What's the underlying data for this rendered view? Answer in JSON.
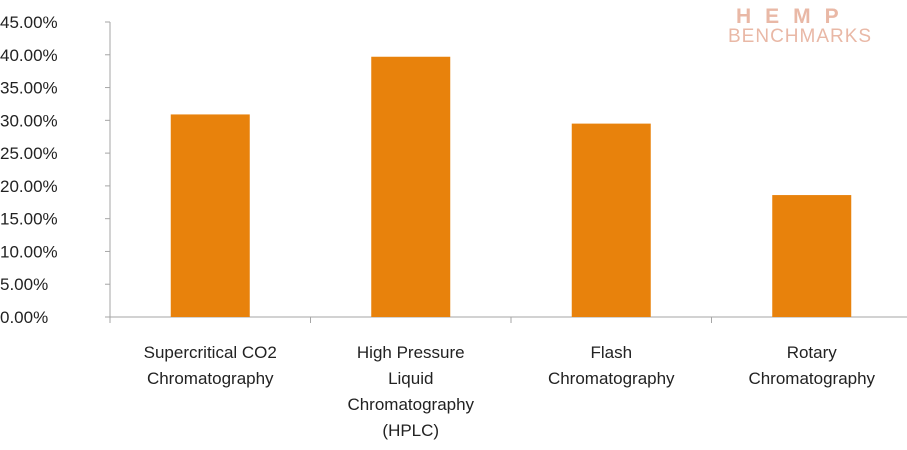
{
  "watermark": {
    "line1": "HEMP",
    "line2": "BENCHMARKS"
  },
  "chart_data": {
    "type": "bar",
    "title": "",
    "xlabel": "",
    "ylabel": "",
    "categories": [
      [
        "Supercritical CO2",
        "Chromatography"
      ],
      [
        "High Pressure",
        "Liquid",
        "Chromatography",
        "(HPLC)"
      ],
      [
        "Flash",
        "Chromatography"
      ],
      [
        "Rotary",
        "Chromatography"
      ]
    ],
    "values": [
      0.309,
      0.397,
      0.295,
      0.186
    ],
    "ylim": [
      0,
      0.45
    ],
    "yticks": [
      "0.00%",
      "5.00%",
      "10.00%",
      "15.00%",
      "20.00%",
      "25.00%",
      "30.00%",
      "35.00%",
      "40.00%",
      "45.00%"
    ],
    "bar_color": "#e8820c",
    "axis_color": "#a6a6a6",
    "grid": false,
    "legend": "none"
  }
}
